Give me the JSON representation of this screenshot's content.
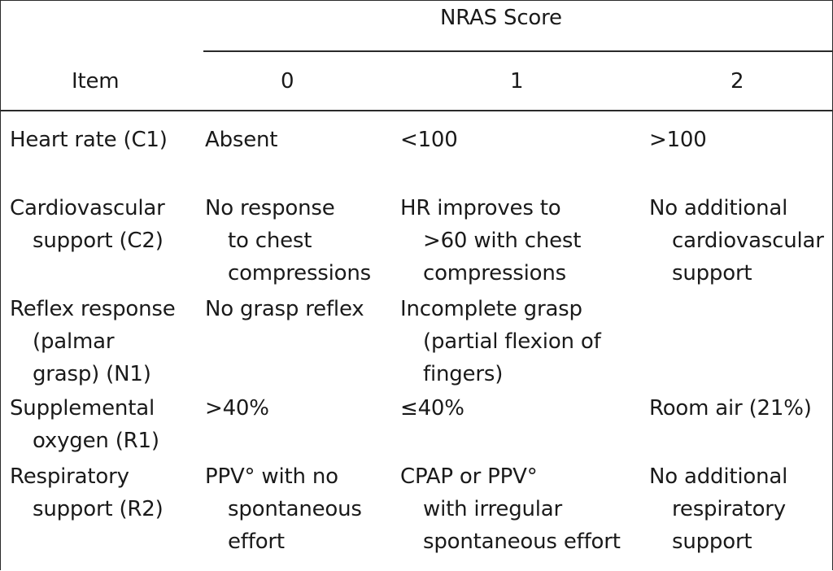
{
  "table": {
    "spanning_header": "NRAS Score",
    "columns": {
      "item": "Item",
      "score0": "0",
      "score1": "1",
      "score2": "2"
    },
    "rows": [
      {
        "item": [
          "Heart rate (C1)"
        ],
        "s0": [
          "Absent"
        ],
        "s1": [
          "<100"
        ],
        "s2": [
          ">100"
        ]
      },
      {
        "item": [
          "Cardiovascular",
          "support (C2)"
        ],
        "s0": [
          "No response",
          "to chest",
          "compressions"
        ],
        "s1": [
          "HR improves to",
          ">60 with chest",
          "compressions"
        ],
        "s2": [
          "No additional",
          "cardiovascular",
          "support"
        ]
      },
      {
        "item": [
          "Reflex response",
          "(palmar",
          "grasp) (N1)"
        ],
        "s0": [
          "No grasp reflex"
        ],
        "s1": [
          "Incomplete grasp",
          "(partial flexion of",
          "fingers)"
        ],
        "s2": []
      },
      {
        "item": [
          "Supplemental",
          "oxygen (R1)"
        ],
        "s0": [
          ">40%"
        ],
        "s1": [
          "≤40%"
        ],
        "s2": [
          "Room air (21%)"
        ]
      },
      {
        "item": [
          "Respiratory",
          "support (R2)"
        ],
        "s0": [
          "PPV° with no",
          "spontaneous",
          "effort"
        ],
        "s1": [
          "CPAP or PPV°",
          "with irregular",
          "spontaneous effort"
        ],
        "s2": [
          "No additional",
          "respiratory",
          "support"
        ]
      }
    ]
  }
}
